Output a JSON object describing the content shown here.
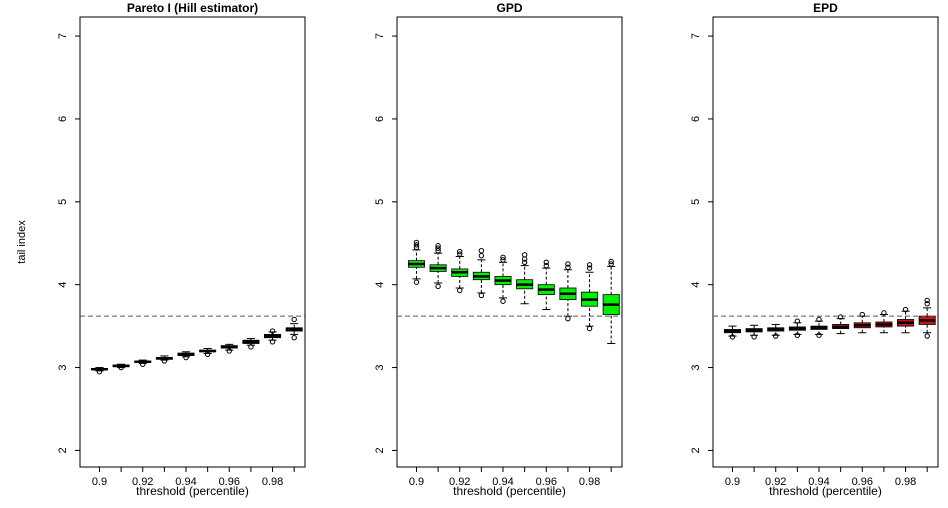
{
  "chart_data": [
    {
      "type": "box",
      "title": "Pareto I (Hill estimator)",
      "xlabel": "threshold (percentile)",
      "ylabel": "tail index",
      "categories": [
        "0.9",
        null,
        "0.92",
        null,
        "0.94",
        null,
        "0.96",
        null,
        "0.98",
        null
      ],
      "ylim": [
        1.8,
        7.23
      ],
      "yticks": [
        2,
        3,
        4,
        5,
        6,
        7
      ],
      "color": "#1a1a6e",
      "reference_line": 3.62,
      "whisker_low": [
        2.96,
        3.0,
        3.05,
        3.09,
        3.13,
        3.17,
        3.21,
        3.27,
        3.33,
        3.4
      ],
      "q1": [
        2.975,
        3.01,
        3.06,
        3.1,
        3.145,
        3.19,
        3.235,
        3.29,
        3.36,
        3.44
      ],
      "median": [
        2.98,
        3.02,
        3.07,
        3.11,
        3.16,
        3.2,
        3.25,
        3.31,
        3.38,
        3.46
      ],
      "q3": [
        2.99,
        3.03,
        3.08,
        3.12,
        3.175,
        3.21,
        3.265,
        3.33,
        3.4,
        3.48
      ],
      "whisker_high": [
        3.0,
        3.04,
        3.09,
        3.14,
        3.19,
        3.23,
        3.28,
        3.35,
        3.43,
        3.53
      ],
      "outliers": [
        [
          2.95
        ],
        [
          3.0
        ],
        [
          3.04
        ],
        [
          3.08
        ],
        [
          3.12
        ],
        [
          3.16
        ],
        [
          3.2
        ],
        [
          3.25
        ],
        [
          3.31,
          3.44
        ],
        [
          3.36,
          3.58
        ]
      ]
    },
    {
      "type": "box",
      "title": "GPD",
      "xlabel": "threshold (percentile)",
      "categories": [
        "0.9",
        null,
        "0.92",
        null,
        "0.94",
        null,
        "0.96",
        null,
        "0.98",
        null
      ],
      "ylim": [
        1.8,
        7.23
      ],
      "yticks": [
        2,
        3,
        4,
        5,
        6,
        7
      ],
      "color": "#00ee00",
      "reference_line": 3.62,
      "whisker_low": [
        4.07,
        4.02,
        3.96,
        3.9,
        3.84,
        3.77,
        3.7,
        3.62,
        3.5,
        3.29
      ],
      "q1": [
        4.21,
        4.16,
        4.1,
        4.06,
        4.0,
        3.95,
        3.88,
        3.82,
        3.74,
        3.64
      ],
      "median": [
        4.25,
        4.2,
        4.15,
        4.1,
        4.05,
        4.0,
        3.94,
        3.89,
        3.82,
        3.76
      ],
      "q3": [
        4.29,
        4.24,
        4.19,
        4.15,
        4.1,
        4.06,
        4.0,
        3.96,
        3.91,
        3.88
      ],
      "whisker_high": [
        4.42,
        4.38,
        4.34,
        4.3,
        4.27,
        4.23,
        4.2,
        4.18,
        4.15,
        4.22
      ],
      "outliers": [
        [
          4.45,
          4.48,
          4.51,
          4.03
        ],
        [
          4.41,
          4.44,
          4.47,
          3.98
        ],
        [
          4.37,
          4.4,
          3.93
        ],
        [
          4.35,
          4.41,
          3.87
        ],
        [
          4.3,
          4.33,
          3.8
        ],
        [
          4.27,
          4.31,
          4.36
        ],
        [
          4.23,
          4.27
        ],
        [
          4.21,
          4.25,
          3.59
        ],
        [
          4.2,
          4.24,
          3.47
        ],
        [
          4.25,
          4.28
        ]
      ]
    },
    {
      "type": "box",
      "title": "EPD",
      "xlabel": "threshold (percentile)",
      "categories": [
        "0.9",
        null,
        "0.92",
        null,
        "0.94",
        null,
        "0.96",
        null,
        "0.98",
        null
      ],
      "ylim": [
        1.8,
        7.23
      ],
      "yticks": [
        2,
        3,
        4,
        5,
        6,
        7
      ],
      "color": "#cc1111",
      "reference_line": 3.62,
      "whisker_low": [
        3.38,
        3.39,
        3.39,
        3.4,
        3.4,
        3.41,
        3.42,
        3.42,
        3.42,
        3.42
      ],
      "q1": [
        3.42,
        3.43,
        3.44,
        3.45,
        3.46,
        3.47,
        3.48,
        3.49,
        3.5,
        3.52
      ],
      "median": [
        3.44,
        3.45,
        3.46,
        3.47,
        3.48,
        3.49,
        3.51,
        3.52,
        3.54,
        3.57
      ],
      "q3": [
        3.46,
        3.47,
        3.48,
        3.49,
        3.5,
        3.52,
        3.54,
        3.55,
        3.58,
        3.62
      ],
      "whisker_high": [
        3.5,
        3.51,
        3.52,
        3.54,
        3.56,
        3.59,
        3.62,
        3.64,
        3.68,
        3.72
      ],
      "outliers": [
        [
          3.37
        ],
        [
          3.37
        ],
        [
          3.38
        ],
        [
          3.39,
          3.56
        ],
        [
          3.39,
          3.58
        ],
        [
          3.61
        ],
        [
          3.64
        ],
        [
          3.66
        ],
        [
          3.7
        ],
        [
          3.38,
          3.77,
          3.81
        ]
      ]
    }
  ]
}
